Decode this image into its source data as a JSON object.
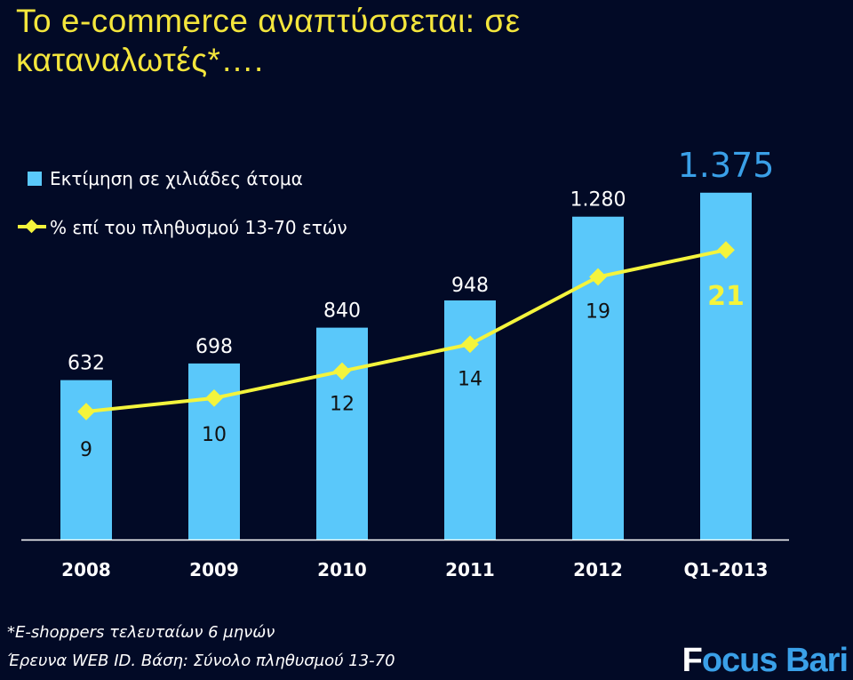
{
  "title_line1": "Το e-commerce αναπτύσσεται: σε",
  "title_line2": "καταναλωτές*….",
  "footnote": "*E-shoppers τελευταίων 6 μηνών",
  "source": "Έρευνα WEB ID. Βάση: Σύνολο πληθυσμού 13-70",
  "logo": {
    "part1": "F",
    "part2": "ocus Bari"
  },
  "colors": {
    "bar": "#5ac8fa",
    "line": "#f4f43c",
    "background": "#020a26",
    "title": "#f4e63c"
  },
  "chart_data": {
    "type": "bar",
    "categories": [
      "2008",
      "2009",
      "2010",
      "2011",
      "2012",
      "Q1-2013"
    ],
    "series": [
      {
        "name": "Εκτίμηση σε χιλιάδες άτομα",
        "type": "bar",
        "values": [
          632,
          698,
          840,
          948,
          1280,
          1375
        ],
        "labels": [
          "632",
          "698",
          "840",
          "948",
          "1.280",
          "1.375"
        ]
      },
      {
        "name": "% επί του πληθυσμού 13-70 ετών",
        "type": "line",
        "values": [
          9,
          10,
          12,
          14,
          19,
          21
        ],
        "labels": [
          "9",
          "10",
          "12",
          "14",
          "19",
          "21"
        ]
      }
    ],
    "legend_position": "top-left",
    "grid": false
  }
}
